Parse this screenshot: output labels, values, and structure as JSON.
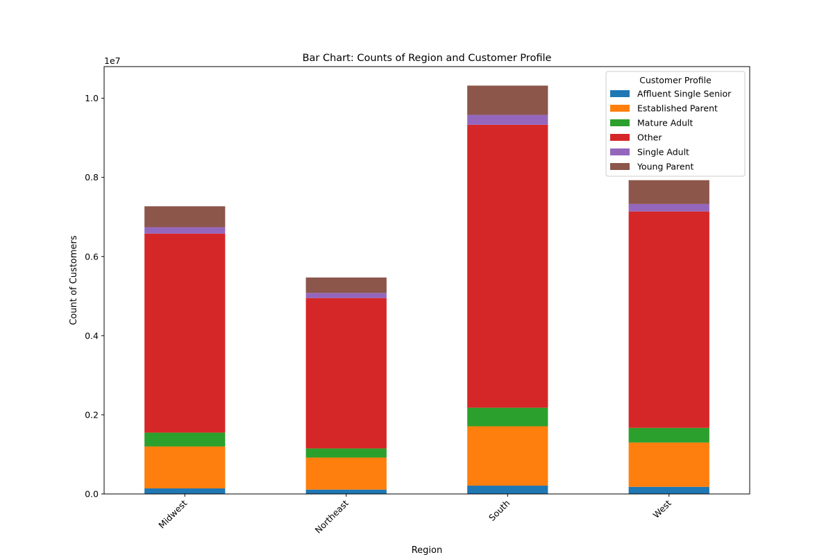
{
  "chart_data": {
    "type": "bar",
    "stacked": true,
    "title": "Bar Chart: Counts of Region and Customer Profile",
    "xlabel": "Region",
    "ylabel": "Count of Customers",
    "y_multiplier_label": "1e7",
    "ylim": [
      0,
      10800000
    ],
    "y_ticks": [
      0,
      2000000,
      4000000,
      6000000,
      8000000,
      10000000
    ],
    "y_tick_labels": [
      "0.0",
      "0.2",
      "0.4",
      "0.6",
      "0.8",
      "1.0"
    ],
    "grid": false,
    "legend_title": "Customer Profile",
    "legend_position": "top-right",
    "categories": [
      "Midwest",
      "Northeast",
      "South",
      "West"
    ],
    "series": [
      {
        "name": "Affluent Single Senior",
        "color": "#1f77b4",
        "values": [
          140000,
          110000,
          210000,
          180000
        ]
      },
      {
        "name": "Established Parent",
        "color": "#ff7f0e",
        "values": [
          1060000,
          810000,
          1500000,
          1120000
        ]
      },
      {
        "name": "Mature Adult",
        "color": "#2ca02c",
        "values": [
          350000,
          230000,
          470000,
          370000
        ]
      },
      {
        "name": "Other",
        "color": "#d62728",
        "values": [
          5030000,
          3800000,
          7150000,
          5470000
        ]
      },
      {
        "name": "Single Adult",
        "color": "#9467bd",
        "values": [
          160000,
          130000,
          250000,
          190000
        ]
      },
      {
        "name": "Young Parent",
        "color": "#8c564b",
        "values": [
          530000,
          390000,
          740000,
          600000
        ]
      }
    ]
  }
}
